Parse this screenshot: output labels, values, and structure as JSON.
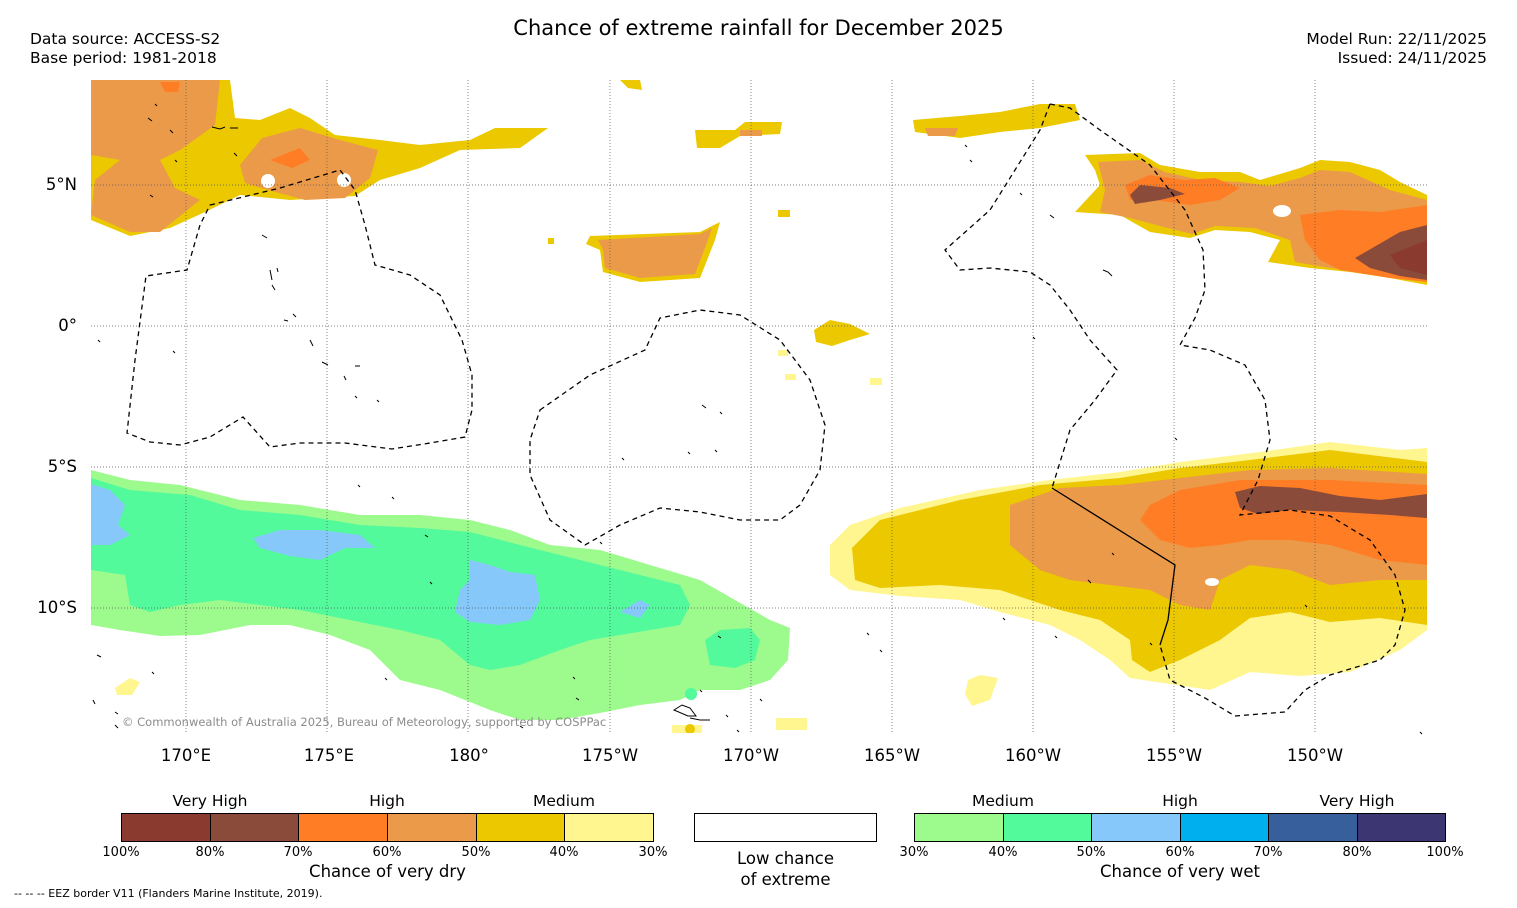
{
  "title": "Chance of extreme rainfall for December 2025",
  "header": {
    "data_source": "Data source: ACCESS-S2",
    "base_period": "Base period: 1981-2018",
    "model_run": "Model Run: 22/11/2025",
    "issued": "Issued: 24/11/2025"
  },
  "map": {
    "lat_labels": [
      "5°N",
      "0°",
      "5°S",
      "10°S"
    ],
    "lon_labels": [
      "170°E",
      "175°E",
      "180°",
      "175°W",
      "170°W",
      "165°W",
      "160°W",
      "155°W",
      "150°W"
    ],
    "copyright": "© Commonwealth of Australia 2025, Bureau of Meteorology, supported by COSPPac"
  },
  "legend": {
    "dry": {
      "categories": [
        "Very High",
        "High",
        "Medium"
      ],
      "ticks": [
        "100%",
        "80%",
        "70%",
        "60%",
        "50%",
        "40%",
        "30%"
      ],
      "colors": [
        "#8b3a2f",
        "#8a4b3a",
        "#ff7d24",
        "#eb9a4a",
        "#ebc800",
        "#fff68f"
      ],
      "title": "Chance of very dry"
    },
    "neutral": {
      "label_line1": "Low chance",
      "label_line2": "of extreme",
      "color": "#ffffff"
    },
    "wet": {
      "categories": [
        "Medium",
        "High",
        "Very High"
      ],
      "ticks": [
        "30%",
        "40%",
        "50%",
        "60%",
        "70%",
        "80%",
        "100%"
      ],
      "colors": [
        "#9dfa8c",
        "#52fa9c",
        "#87c8fa",
        "#00b0ee",
        "#365f9b",
        "#3c3672"
      ],
      "title": "Chance of very wet"
    }
  },
  "footnote": "--  --  -- EEZ border V11 (Flanders Marine Institute, 2019)."
}
